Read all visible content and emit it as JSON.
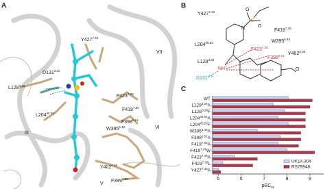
{
  "panels": {
    "a": {
      "letter": "A",
      "residues": [
        {
          "name": "Y427",
          "sup": "7.43"
        },
        {
          "name": "D131",
          "sup": "3.32"
        },
        {
          "name": "L128",
          "sup": "3.28"
        },
        {
          "name": "F423",
          "sup": "7.39"
        },
        {
          "name": "F419",
          "sup": "7.35"
        },
        {
          "name": "W395",
          "sup": "6.48"
        },
        {
          "name": "F398",
          "sup": "6.51"
        },
        {
          "name": "L204",
          "sup": "45.52"
        },
        {
          "name": "Y402",
          "sup": "6.55"
        },
        {
          "name": "F399",
          "sup": "6.52"
        }
      ],
      "helices": [
        "VII",
        "III",
        "VI",
        "V"
      ]
    },
    "b": {
      "letter": "B",
      "residues": [
        {
          "name": "Y427",
          "sup": "7.43"
        },
        {
          "name": "F419",
          "sup": "7.35"
        },
        {
          "name": "L204",
          "sup": "45.52"
        },
        {
          "name": "W395",
          "sup": "6.48"
        },
        {
          "name": "F423",
          "sup": "7.39"
        },
        {
          "name": "F398",
          "sup": "6.51"
        },
        {
          "name": "Y402",
          "sup": "6.55"
        },
        {
          "name": "L128",
          "sup": "3.28"
        },
        {
          "name": "D131",
          "sup": "3.32"
        }
      ],
      "atoms": {
        "n": "N",
        "s": "S",
        "o1": "O",
        "o2": "O",
        "nh": "NH",
        "charge": "+"
      }
    },
    "c": {
      "letter": "C"
    }
  },
  "chart_data": {
    "type": "bar",
    "orientation": "horizontal",
    "categories": [
      {
        "name": "WT"
      },
      {
        "name": "L128",
        "sup": "3.28",
        "mut": "A"
      },
      {
        "name": "L128",
        "sup": "3.28",
        "mut": "F"
      },
      {
        "name": "L204",
        "sup": "45.52",
        "mut": "A"
      },
      {
        "name": "L204",
        "sup": "45.52",
        "mut": "F"
      },
      {
        "name": "W395",
        "sup": "6.48",
        "mut": "A"
      },
      {
        "name": "F398",
        "sup": "6.51",
        "mut": "A"
      },
      {
        "name": "F419",
        "sup": "7.35",
        "mut": "A"
      },
      {
        "name": "F419",
        "sup": "7.35",
        "mut": "W"
      },
      {
        "name": "F423",
        "sup": "7.39",
        "mut": "A"
      },
      {
        "name": "F423",
        "sup": "7.39",
        "mut": "L"
      },
      {
        "name": "Y427",
        "sup": "7.43",
        "mut": "A"
      }
    ],
    "series": [
      {
        "name": "UK14.304",
        "color": "#c9d6ee",
        "edge": "#4a68b0",
        "values": [
          8.05,
          7.4,
          7.9,
          7.6,
          8.05,
          6.7,
          7.7,
          7.6,
          8.0,
          5.7,
          5.2,
          5.0
        ]
      },
      {
        "name": "RS79948",
        "color": "#a83a4e",
        "edge": "#7a1f30",
        "values": [
          9.1,
          9.0,
          8.8,
          8.8,
          8.8,
          8.6,
          8.6,
          8.5,
          9.2,
          6.7,
          6.5,
          5.1
        ]
      }
    ],
    "xlabel": "pEC",
    "xlabel_sub": "50",
    "xlim": [
      4.75,
      9.6
    ],
    "xticks": [
      5,
      6,
      7,
      8,
      9
    ],
    "legend": "lower right"
  }
}
